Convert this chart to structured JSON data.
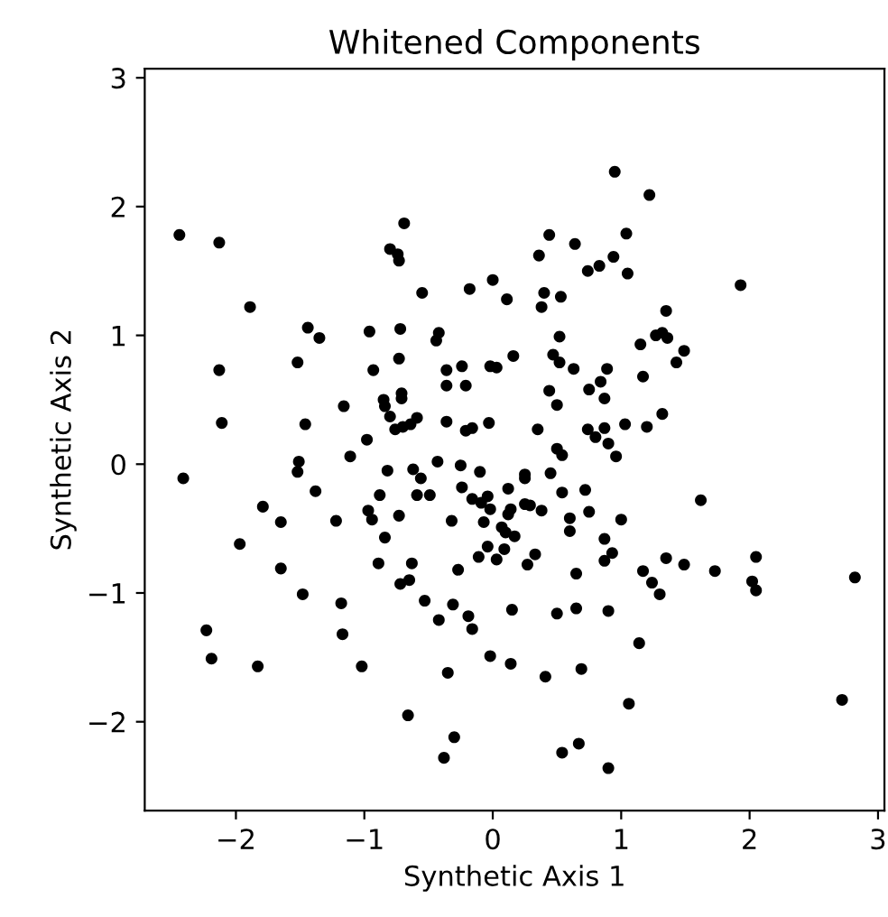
{
  "chart_data": {
    "type": "scatter",
    "title": "Whitened Components",
    "xlabel": "Synthetic Axis 1",
    "ylabel": "Synthetic Axis 2",
    "xlim": [
      -2.71,
      3.05
    ],
    "ylim": [
      -2.69,
      3.07
    ],
    "xticks": [
      -2,
      -1,
      0,
      1,
      2,
      3
    ],
    "yticks": [
      -2,
      -1,
      0,
      1,
      2,
      3
    ],
    "grid": false,
    "legend": false,
    "marker": "circle",
    "series": [
      {
        "color": "#000000",
        "x": [
          -2.44,
          -2.13,
          -0.69,
          -0.8,
          -0.74,
          -0.73,
          -1.89,
          -0.55,
          -0.18,
          0.0,
          0.11,
          -1.44,
          -1.35,
          -0.96,
          -0.72,
          -0.42,
          -0.44,
          -1.52,
          -2.13,
          -0.93,
          -0.73,
          -0.36,
          -0.24,
          -0.02,
          0.03,
          0.16,
          -0.36,
          -0.21,
          -0.85,
          -0.84,
          -0.71,
          -0.71,
          -1.16,
          -0.8,
          -2.11,
          -1.46,
          -0.76,
          -0.7,
          -0.64,
          -0.59,
          -0.36,
          -0.21,
          -0.16,
          -0.03,
          -0.98,
          0.95,
          1.22,
          0.44,
          0.64,
          1.04,
          0.36,
          0.94,
          0.74,
          0.83,
          1.05,
          1.93,
          0.4,
          0.38,
          0.53,
          1.35,
          0.52,
          0.47,
          0.52,
          0.63,
          0.89,
          1.15,
          1.27,
          1.32,
          1.36,
          1.49,
          1.43,
          1.17,
          0.44,
          0.5,
          0.75,
          0.84,
          0.87,
          0.35,
          0.74,
          0.8,
          0.87,
          0.9,
          1.03,
          1.2,
          1.32,
          0.5,
          0.96,
          0.54,
          0.25,
          0.25,
          0.45,
          0.12,
          0.54,
          0.72,
          1.62,
          -0.02,
          0.14,
          0.12,
          0.25,
          0.29,
          0.38,
          -0.04,
          0.6,
          0.6,
          0.75,
          1.0,
          0.07,
          0.1,
          0.17,
          0.87,
          -0.04,
          0.09,
          0.03,
          0.33,
          0.27,
          0.93,
          0.87,
          0.65,
          1.17,
          1.24,
          1.3,
          1.35,
          1.49,
          1.73,
          2.05,
          2.02,
          2.05,
          2.82,
          0.15,
          0.5,
          0.65,
          0.9,
          1.14,
          -0.02,
          0.14,
          0.41,
          0.69,
          1.06,
          2.72,
          0.54,
          0.67,
          0.9,
          -2.41,
          -1.51,
          -1.52,
          -1.11,
          -1.38,
          -1.79,
          -1.65,
          -1.22,
          -1.97,
          -1.65,
          -1.48,
          -2.23,
          -2.19,
          -1.83,
          -1.18,
          -1.17,
          -1.02,
          -0.82,
          -0.62,
          -0.56,
          -0.43,
          -0.25,
          -0.1,
          -0.59,
          -0.49,
          -0.88,
          -0.24,
          -0.16,
          -0.09,
          -0.97,
          -0.94,
          -0.73,
          -0.32,
          -0.07,
          -0.84,
          -0.11,
          -0.89,
          -0.63,
          -0.27,
          -0.72,
          -0.65,
          -0.53,
          -0.31,
          -0.42,
          -0.19,
          -0.16,
          -0.35,
          -0.66,
          -0.3,
          -0.38
        ],
        "values": [
          1.78,
          1.72,
          1.87,
          1.67,
          1.63,
          1.58,
          1.22,
          1.33,
          1.36,
          1.43,
          1.28,
          1.06,
          0.98,
          1.03,
          1.05,
          1.02,
          0.96,
          0.79,
          0.73,
          0.73,
          0.82,
          0.73,
          0.76,
          0.76,
          0.75,
          0.84,
          0.61,
          0.61,
          0.5,
          0.45,
          0.55,
          0.51,
          0.45,
          0.37,
          0.32,
          0.31,
          0.27,
          0.29,
          0.31,
          0.36,
          0.33,
          0.26,
          0.28,
          0.32,
          0.19,
          2.27,
          2.09,
          1.78,
          1.71,
          1.79,
          1.62,
          1.61,
          1.5,
          1.54,
          1.48,
          1.39,
          1.33,
          1.22,
          1.3,
          1.19,
          0.99,
          0.85,
          0.79,
          0.74,
          0.74,
          0.93,
          1.0,
          1.02,
          0.98,
          0.88,
          0.79,
          0.68,
          0.57,
          0.46,
          0.58,
          0.64,
          0.51,
          0.27,
          0.27,
          0.21,
          0.28,
          0.16,
          0.31,
          0.29,
          0.39,
          0.12,
          0.06,
          0.07,
          -0.08,
          -0.11,
          -0.07,
          -0.19,
          -0.22,
          -0.2,
          -0.28,
          -0.35,
          -0.35,
          -0.39,
          -0.31,
          -0.32,
          -0.36,
          -0.25,
          -0.42,
          -0.52,
          -0.37,
          -0.43,
          -0.49,
          -0.53,
          -0.56,
          -0.58,
          -0.64,
          -0.66,
          -0.74,
          -0.7,
          -0.78,
          -0.69,
          -0.75,
          -0.85,
          -0.83,
          -0.92,
          -1.01,
          -0.73,
          -0.78,
          -0.83,
          -0.72,
          -0.91,
          -0.98,
          -0.88,
          -1.13,
          -1.16,
          -1.12,
          -1.14,
          -1.39,
          -1.49,
          -1.55,
          -1.65,
          -1.59,
          -1.86,
          -1.83,
          -2.24,
          -2.17,
          -2.36,
          -0.11,
          0.02,
          -0.06,
          0.06,
          -0.21,
          -0.33,
          -0.45,
          -0.44,
          -0.62,
          -0.81,
          -1.01,
          -1.29,
          -1.51,
          -1.57,
          -1.08,
          -1.32,
          -1.57,
          -0.05,
          -0.04,
          -0.11,
          0.02,
          -0.01,
          -0.06,
          -0.24,
          -0.24,
          -0.24,
          -0.18,
          -0.27,
          -0.3,
          -0.36,
          -0.43,
          -0.4,
          -0.44,
          -0.45,
          -0.57,
          -0.72,
          -0.77,
          -0.77,
          -0.82,
          -0.93,
          -0.9,
          -1.06,
          -1.09,
          -1.21,
          -1.18,
          -1.28,
          -1.62,
          -1.95,
          -2.12,
          -2.28
        ]
      }
    ]
  }
}
